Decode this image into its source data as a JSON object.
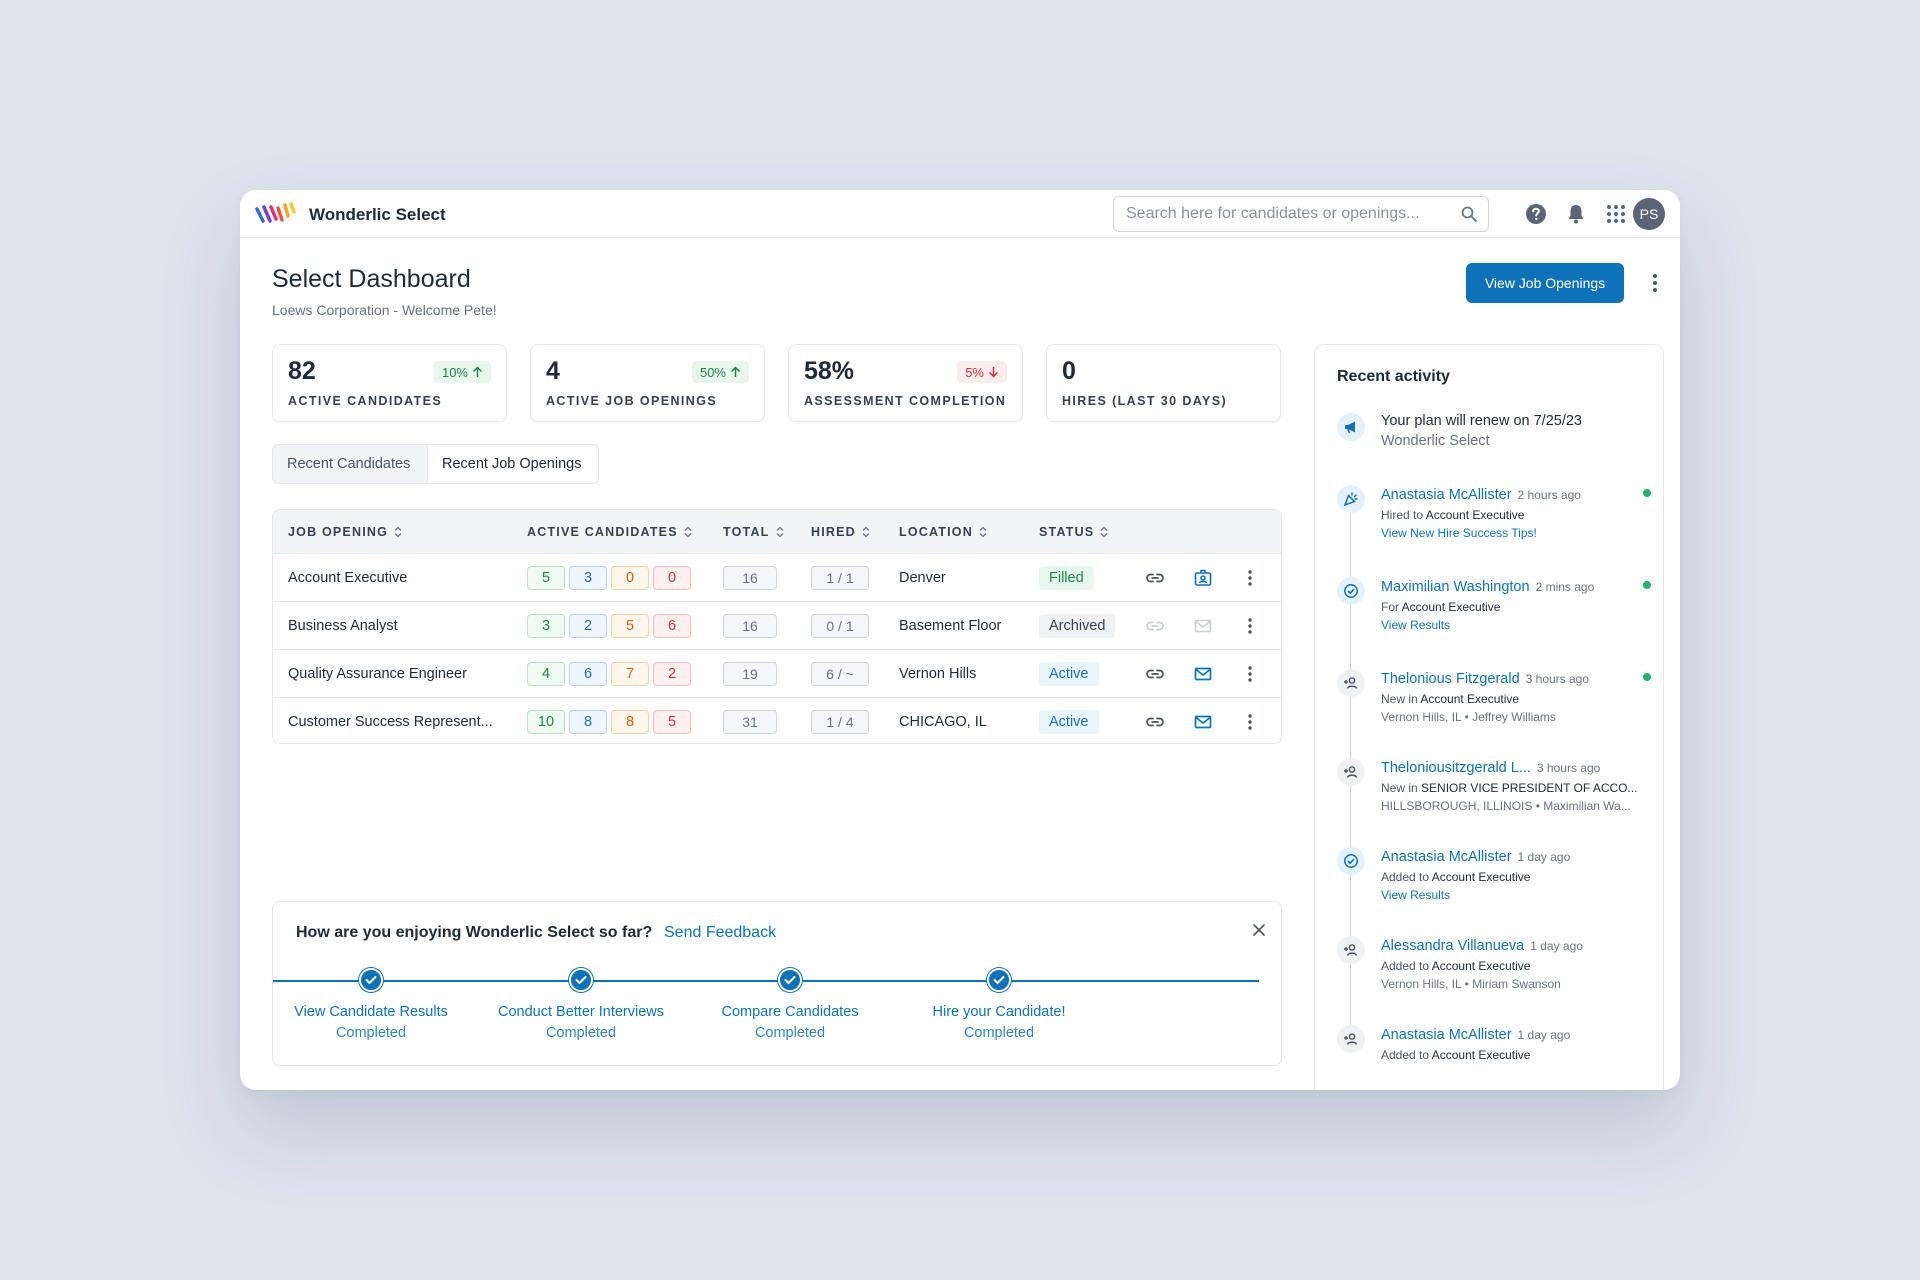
{
  "app": {
    "brand": "Wonderlic Select",
    "search_placeholder": "Search here for candidates or openings...",
    "avatar_initials": "PS",
    "accent_color": "#0e72b8"
  },
  "header": {
    "title": "Select Dashboard",
    "subtitle": "Loews Corporation - Welcome Pete!",
    "primary_button": "View Job Openings"
  },
  "stats": [
    {
      "value": "82",
      "label": "ACTIVE CANDIDATES",
      "badge": "10%",
      "trend": "up"
    },
    {
      "value": "4",
      "label": "ACTIVE JOB OPENINGS",
      "badge": "50%",
      "trend": "up"
    },
    {
      "value": "58%",
      "label": "ASSESSMENT COMPLETION",
      "badge": "5%",
      "trend": "down"
    },
    {
      "value": "0",
      "label": "HIRES (LAST 30 DAYS)",
      "badge": "",
      "trend": ""
    }
  ],
  "tabs": [
    {
      "label": "Recent Candidates",
      "active": false
    },
    {
      "label": "Recent Job Openings",
      "active": true
    }
  ],
  "table": {
    "columns": [
      "JOB OPENING",
      "ACTIVE CANDIDATES",
      "TOTAL",
      "HIRED",
      "LOCATION",
      "STATUS"
    ],
    "rows": [
      {
        "job": "Account Executive",
        "counts": [
          "5",
          "3",
          "0",
          "0"
        ],
        "total": "16",
        "hired": "1 / 1",
        "location": "Denver",
        "status": "Filled",
        "second_action": "badge-icon"
      },
      {
        "job": "Business Analyst",
        "counts": [
          "3",
          "2",
          "5",
          "6"
        ],
        "total": "16",
        "hired": "0 / 1",
        "location": "Basement Floor",
        "status": "Archived",
        "second_action": "mail-icon-disabled"
      },
      {
        "job": "Quality Assurance Engineer",
        "counts": [
          "4",
          "6",
          "7",
          "2"
        ],
        "total": "19",
        "hired": "6 / ~",
        "location": "Vernon Hills",
        "status": "Active",
        "second_action": "mail-icon"
      },
      {
        "job": "Customer Success Represent...",
        "counts": [
          "10",
          "8",
          "8",
          "5"
        ],
        "total": "31",
        "hired": "1 / 4",
        "location": "CHICAGO, IL",
        "status": "Active",
        "second_action": "mail-icon"
      }
    ]
  },
  "feedback": {
    "question": "How are you enjoying Wonderlic Select so far?",
    "link": "Send Feedback",
    "steps": [
      {
        "label": "View Candidate Results",
        "status": "Completed"
      },
      {
        "label": "Conduct Better Interviews",
        "status": "Completed"
      },
      {
        "label": "Compare Candidates",
        "status": "Completed"
      },
      {
        "label": "Hire your Candidate!",
        "status": "Completed"
      }
    ]
  },
  "activity": {
    "title": "Recent activity",
    "plan": {
      "line1": "Your plan will renew on 7/25/23",
      "line2": "Wonderlic Select"
    },
    "items": [
      {
        "name": "Anastasia McAllister",
        "time": "2 hours ago",
        "prefix": "Hired to",
        "target": "Account Executive",
        "extra": "View New Hire Success Tips!",
        "icon": "celebrate-icon",
        "unread": true
      },
      {
        "name": "Maximilian Washington",
        "time": "2 mins ago",
        "prefix": "For",
        "target": "Account Executive",
        "extra": "View Results",
        "icon": "check-circle-icon",
        "unread": true
      },
      {
        "name": "Thelonious Fitzgerald",
        "time": "3 hours ago",
        "prefix": "New in",
        "target": "Account Executive",
        "extra": "Vernon Hills, IL • Jeffrey Williams",
        "icon": "person-add-icon",
        "unread": true
      },
      {
        "name": "Theloniousitzgerald L...",
        "time": "3 hours ago",
        "prefix": "New in",
        "target": "SENIOR VICE PRESIDENT OF ACCO...",
        "extra": "HILLSBOROUGH, ILLINOIS • Maximilian Wa...",
        "icon": "person-add-icon",
        "unread": false
      },
      {
        "name": "Anastasia McAllister",
        "time": "1 day ago",
        "prefix": "Added to",
        "target": "Account Executive",
        "extra": "View Results",
        "icon": "check-circle-icon",
        "unread": false
      },
      {
        "name": "Alessandra Villanueva",
        "time": "1 day ago",
        "prefix": "Added to",
        "target": "Account Executive",
        "extra": "Vernon Hills, IL • Miriam Swanson",
        "icon": "person-add-icon",
        "unread": false
      },
      {
        "name": "Anastasia McAllister",
        "time": "1 day ago",
        "prefix": "Added to",
        "target": "Account Executive",
        "extra": "",
        "icon": "person-add-icon",
        "unread": false
      }
    ]
  }
}
